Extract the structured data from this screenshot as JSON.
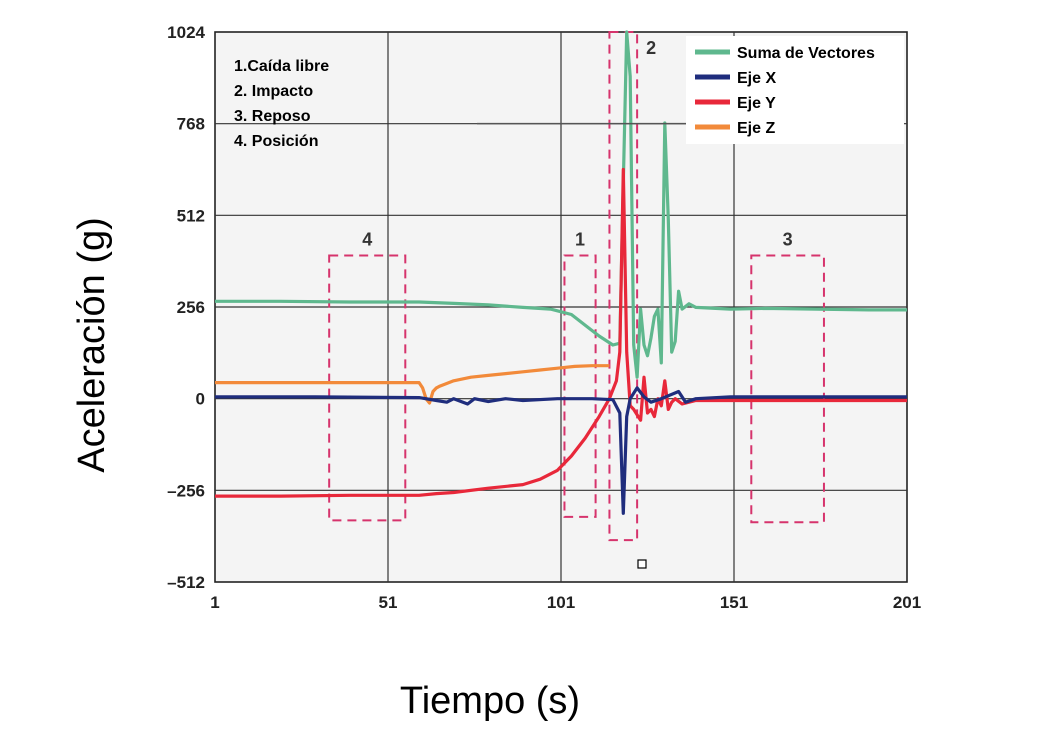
{
  "chart_data": {
    "type": "line",
    "xlabel": "Tiempo (s)",
    "ylabel": "Aceleración (g)",
    "xlim": [
      1,
      201
    ],
    "ylim": [
      -512,
      1024
    ],
    "x_ticks": [
      1,
      51,
      101,
      151,
      201
    ],
    "y_ticks": [
      -512,
      -256,
      0,
      256,
      512,
      768,
      1024
    ],
    "y_tick_labels": [
      "–512",
      "–256",
      "0",
      "256",
      "512",
      "768",
      "1024"
    ],
    "grid": true,
    "legend_position": "top-right",
    "annotations": [
      "1.Caída libre",
      "2. Impacto",
      "3. Reposo",
      "4. Posición"
    ],
    "zones": [
      {
        "label": "4",
        "x": [
          34,
          56
        ],
        "y": [
          -340,
          400
        ]
      },
      {
        "label": "1",
        "x": [
          102,
          111
        ],
        "y": [
          -330,
          400
        ]
      },
      {
        "label": "2",
        "x": [
          115,
          123
        ],
        "y": [
          -395,
          1024
        ]
      },
      {
        "label": "3",
        "x": [
          156,
          177
        ],
        "y": [
          -345,
          400
        ]
      }
    ],
    "series": [
      {
        "name": "Suma de Vectores",
        "color": "#5fb88e",
        "points": [
          [
            1,
            272
          ],
          [
            20,
            272
          ],
          [
            40,
            270
          ],
          [
            60,
            270
          ],
          [
            70,
            266
          ],
          [
            80,
            262
          ],
          [
            90,
            255
          ],
          [
            98,
            250
          ],
          [
            104,
            235
          ],
          [
            108,
            205
          ],
          [
            112,
            175
          ],
          [
            116,
            150
          ],
          [
            118,
            155
          ],
          [
            119,
            600
          ],
          [
            120,
            1024
          ],
          [
            121,
            900
          ],
          [
            122,
            150
          ],
          [
            123,
            60
          ],
          [
            124,
            250
          ],
          [
            125,
            150
          ],
          [
            126,
            120
          ],
          [
            127,
            170
          ],
          [
            128,
            230
          ],
          [
            129,
            250
          ],
          [
            130,
            100
          ],
          [
            131,
            770
          ],
          [
            132,
            500
          ],
          [
            133,
            130
          ],
          [
            134,
            160
          ],
          [
            135,
            300
          ],
          [
            136,
            250
          ],
          [
            138,
            265
          ],
          [
            140,
            255
          ],
          [
            150,
            250
          ],
          [
            160,
            252
          ],
          [
            175,
            250
          ],
          [
            190,
            248
          ],
          [
            201,
            248
          ]
        ]
      },
      {
        "name": "Eje X",
        "color": "#1f2d7d",
        "points": [
          [
            1,
            5
          ],
          [
            30,
            5
          ],
          [
            60,
            3
          ],
          [
            65,
            -5
          ],
          [
            68,
            -10
          ],
          [
            70,
            0
          ],
          [
            74,
            -15
          ],
          [
            76,
            0
          ],
          [
            80,
            -8
          ],
          [
            85,
            0
          ],
          [
            90,
            -5
          ],
          [
            100,
            0
          ],
          [
            110,
            0
          ],
          [
            116,
            -3
          ],
          [
            118,
            -40
          ],
          [
            119,
            -320
          ],
          [
            120,
            -50
          ],
          [
            121,
            0
          ],
          [
            123,
            30
          ],
          [
            125,
            5
          ],
          [
            127,
            -10
          ],
          [
            130,
            0
          ],
          [
            135,
            20
          ],
          [
            137,
            -10
          ],
          [
            140,
            0
          ],
          [
            150,
            5
          ],
          [
            175,
            5
          ],
          [
            201,
            5
          ]
        ]
      },
      {
        "name": "Eje Y",
        "color": "#e8283a",
        "points": [
          [
            1,
            -272
          ],
          [
            20,
            -272
          ],
          [
            40,
            -270
          ],
          [
            60,
            -270
          ],
          [
            65,
            -265
          ],
          [
            70,
            -262
          ],
          [
            80,
            -250
          ],
          [
            90,
            -240
          ],
          [
            95,
            -225
          ],
          [
            100,
            -200
          ],
          [
            104,
            -160
          ],
          [
            108,
            -110
          ],
          [
            112,
            -50
          ],
          [
            115,
            0
          ],
          [
            117,
            50
          ],
          [
            118,
            130
          ],
          [
            119,
            640
          ],
          [
            120,
            130
          ],
          [
            121,
            -20
          ],
          [
            122,
            -30
          ],
          [
            123,
            -45
          ],
          [
            124,
            -60
          ],
          [
            125,
            60
          ],
          [
            126,
            -40
          ],
          [
            127,
            -30
          ],
          [
            128,
            -50
          ],
          [
            129,
            0
          ],
          [
            130,
            -20
          ],
          [
            131,
            50
          ],
          [
            132,
            -30
          ],
          [
            133,
            -10
          ],
          [
            134,
            0
          ],
          [
            136,
            -15
          ],
          [
            138,
            -10
          ],
          [
            140,
            -5
          ],
          [
            150,
            -5
          ],
          [
            201,
            -5
          ]
        ]
      },
      {
        "name": "Eje Z",
        "color": "#f28a3a",
        "points": [
          [
            1,
            45
          ],
          [
            20,
            45
          ],
          [
            40,
            45
          ],
          [
            60,
            45
          ],
          [
            61,
            30
          ],
          [
            62,
            0
          ],
          [
            63,
            -12
          ],
          [
            64,
            20
          ],
          [
            65,
            30
          ],
          [
            66,
            35
          ],
          [
            70,
            50
          ],
          [
            75,
            60
          ],
          [
            80,
            65
          ],
          [
            85,
            70
          ],
          [
            90,
            75
          ],
          [
            95,
            80
          ],
          [
            100,
            85
          ],
          [
            105,
            90
          ],
          [
            110,
            92
          ],
          [
            115,
            92
          ]
        ]
      }
    ]
  }
}
